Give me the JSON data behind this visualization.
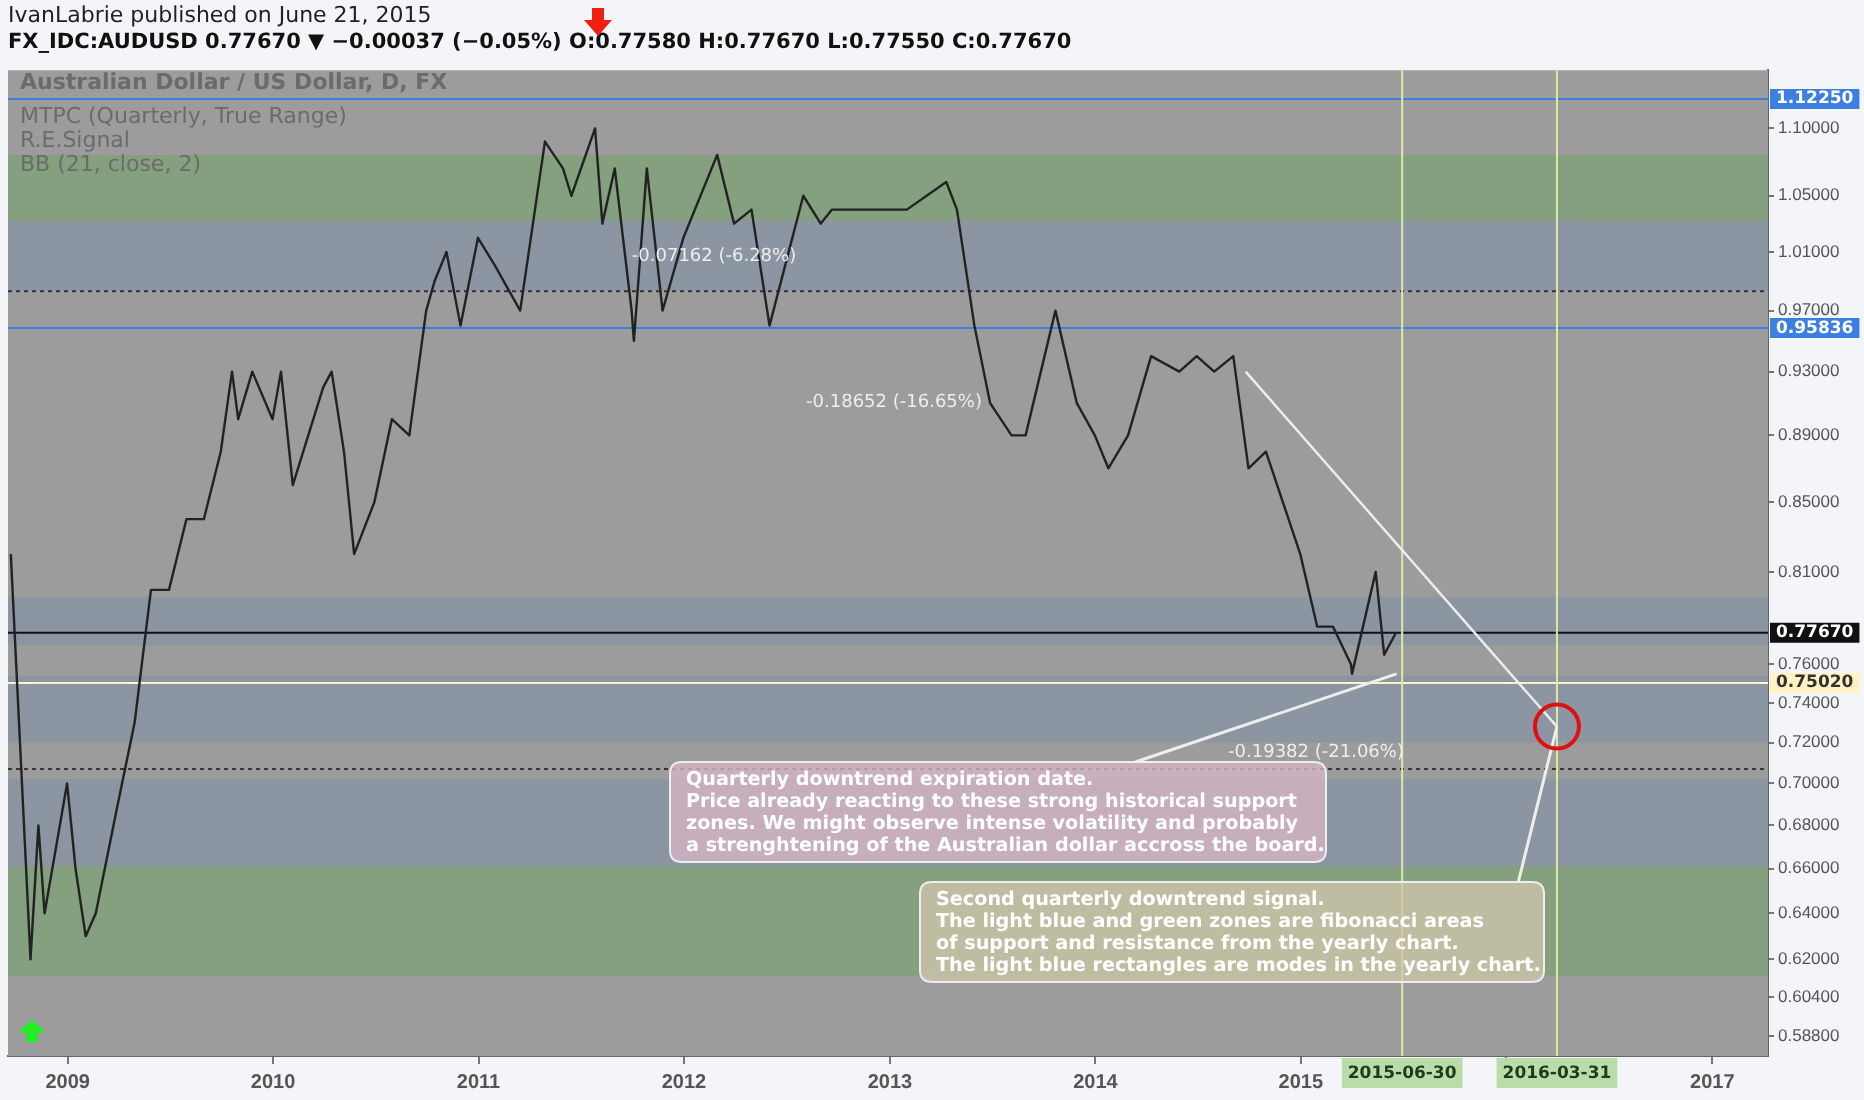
{
  "chart_data": {
    "type": "line",
    "title": "Australian Dollar / US Dollar, D, FX",
    "subtitle": "FX_IDC:AUDUSD 0.77670 ▼ −0.00037 (−0.05%) O:0.77580 H:0.77670 L:0.77550 C:0.77670",
    "series": [
      {
        "color": "#222222",
        "x": [
          "2008-09-22",
          "2008-10-27",
          "2008-11-10",
          "2008-11-21",
          "2008-12-31",
          "2009-01-15",
          "2009-02-02",
          "2009-02-20",
          "2009-03-31",
          "2009-04-30",
          "2009-05-29",
          "2009-06-30",
          "2009-07-31",
          "2009-08-31",
          "2009-09-30",
          "2009-10-20",
          "2009-10-31",
          "2009-11-25",
          "2009-12-31",
          "2010-01-15",
          "2010-02-05",
          "2010-03-31",
          "2010-04-15",
          "2010-05-07",
          "2010-05-25",
          "2010-06-30",
          "2010-07-31",
          "2010-08-31",
          "2010-09-30",
          "2010-10-15",
          "2010-11-05",
          "2010-11-30",
          "2010-12-31",
          "2011-01-31",
          "2011-03-16",
          "2011-04-29",
          "2011-05-31",
          "2011-06-15",
          "2011-07-27",
          "2011-08-09",
          "2011-08-31",
          "2011-09-30",
          "2011-10-04",
          "2011-10-27",
          "2011-11-24",
          "2011-12-31",
          "2012-02-29",
          "2012-03-30",
          "2012-04-30",
          "2012-06-01",
          "2012-07-31",
          "2012-08-31",
          "2012-09-20",
          "2012-10-31",
          "2012-12-31",
          "2013-01-31",
          "2013-04-11",
          "2013-04-30",
          "2013-05-31",
          "2013-06-28",
          "2013-08-05",
          "2013-08-30",
          "2013-10-22",
          "2013-11-29",
          "2013-12-31",
          "2014-01-24",
          "2014-02-28",
          "2014-04-10",
          "2014-05-30",
          "2014-06-30",
          "2014-07-31",
          "2014-09-03",
          "2014-09-30",
          "2014-10-31",
          "2014-11-30",
          "2014-12-31",
          "2015-01-30",
          "2015-02-27",
          "2015-03-31",
          "2015-04-02",
          "2015-05-14",
          "2015-05-29",
          "2015-06-19"
        ],
        "values": [
          0.82,
          0.62,
          0.68,
          0.64,
          0.7,
          0.66,
          0.63,
          0.64,
          0.69,
          0.73,
          0.8,
          0.8,
          0.84,
          0.84,
          0.88,
          0.93,
          0.9,
          0.93,
          0.9,
          0.93,
          0.86,
          0.92,
          0.93,
          0.88,
          0.82,
          0.85,
          0.9,
          0.89,
          0.97,
          0.99,
          1.01,
          0.96,
          1.02,
          1.0,
          0.97,
          1.09,
          1.07,
          1.05,
          1.1,
          1.03,
          1.07,
          0.97,
          0.95,
          1.07,
          0.97,
          1.02,
          1.08,
          1.03,
          1.04,
          0.96,
          1.05,
          1.03,
          1.04,
          1.04,
          1.04,
          1.04,
          1.06,
          1.04,
          0.96,
          0.91,
          0.89,
          0.89,
          0.97,
          0.91,
          0.89,
          0.87,
          0.89,
          0.94,
          0.93,
          0.94,
          0.93,
          0.94,
          0.87,
          0.88,
          0.85,
          0.82,
          0.78,
          0.78,
          0.76,
          0.755,
          0.81,
          0.765,
          0.7767
        ]
      },
      {
        "type": "line",
        "color": "#eeeeee",
        "x": [
          "2014-09-25",
          "2016-03-31"
        ],
        "values": [
          0.93,
          0.728
        ]
      }
    ],
    "log": true,
    "grid": false,
    "legend": false,
    "line_style": "solid",
    "xlim": [
      "2008-09-17",
      "2017-04-10"
    ],
    "xticks": [
      "2009",
      "2010",
      "2011",
      "2012",
      "2013",
      "2014",
      "2015",
      {
        "value": "2016",
        "label": null
      },
      "2017"
    ],
    "ylim": [
      0.582,
      1.145
    ],
    "yticks": [
      {
        "value": 1.1,
        "label": "1.10000"
      },
      {
        "value": 1.05,
        "label": "1.05000"
      },
      {
        "value": 1.01,
        "label": "1.01000"
      },
      {
        "value": 0.97,
        "label": "0.97000"
      },
      {
        "value": 0.93,
        "label": "0.93000"
      },
      {
        "value": 0.89,
        "label": "0.89000"
      },
      {
        "value": 0.85,
        "label": "0.85000"
      },
      {
        "value": 0.81,
        "label": "0.81000"
      },
      {
        "value": 0.76,
        "label": "0.76000"
      },
      {
        "value": 0.74,
        "label": "0.74000"
      },
      {
        "value": 0.72,
        "label": "0.72000"
      },
      {
        "value": 0.7,
        "label": "0.70000"
      },
      {
        "value": 0.68,
        "label": "0.68000"
      },
      {
        "value": 0.66,
        "label": "0.66000"
      },
      {
        "value": 0.64,
        "label": "0.64000"
      },
      {
        "value": 0.62,
        "label": "0.62000"
      },
      {
        "value": 0.604,
        "label": "0.60400"
      },
      {
        "value": 0.588,
        "label": "0.58800"
      }
    ],
    "bands": [
      {
        "axis": "y",
        "from": 1.032,
        "to": 1.08,
        "label": null,
        "color": "#84a07f"
      },
      {
        "axis": "y",
        "from": 0.983,
        "to": 1.032,
        "label": null,
        "color": "#8c95a2"
      },
      {
        "axis": "y",
        "from": 0.77,
        "to": 0.796,
        "label": null,
        "color": "#8c95a2"
      },
      {
        "axis": "y",
        "from": 0.72,
        "to": 0.754,
        "label": null,
        "color": "#8c95a2"
      },
      {
        "axis": "y",
        "from": 0.661,
        "to": 0.702,
        "label": null,
        "color": "#8c95a2"
      },
      {
        "axis": "y",
        "from": 0.613,
        "to": 0.661,
        "label": null,
        "color": "#84a07f"
      }
    ],
    "ref_lines": [
      {
        "axis": "y",
        "value": 1.1225,
        "label": "1.12250",
        "color": "#3d7fe0",
        "line_style": "solid"
      },
      {
        "axis": "y",
        "value": 0.95836,
        "label": "0.95836",
        "color": "#3d7fe0",
        "line_style": "solid"
      },
      {
        "axis": "y",
        "value": 0.7767,
        "label": "0.77670",
        "color": "#111111",
        "line_style": "solid"
      },
      {
        "axis": "y",
        "value": 0.7502,
        "label": "0.75020",
        "color": "#fff3c4",
        "line_style": "solid"
      },
      {
        "axis": "y",
        "value": 0.983,
        "label": null,
        "color": "#333333",
        "line_style": "dotted"
      },
      {
        "axis": "y",
        "value": 0.707,
        "label": null,
        "color": "#333333",
        "line_style": "dotted"
      },
      {
        "axis": "x",
        "value": "2015-06-30",
        "label": "2015-06-30",
        "color": "#dfe8a8",
        "line_style": "solid"
      },
      {
        "axis": "x",
        "value": "2016-03-31",
        "label": "2016-03-31",
        "color": "#dfe8a8",
        "line_style": "solid"
      }
    ],
    "annotations": [
      "IvanLabrie published on June 21, 2015",
      "MTPC (Quarterly, True Range)",
      "R.E.Signal",
      "BB (21, close, 2)",
      "-0.07162 (-6.28%)",
      "-0.18652 (-16.65%)",
      "-0.19382 (-21.06%)",
      {
        "text": "Quarterly downtrend expiration date.\nPrice already reacting to these strong historical support\nzones. We might observe intense volatility and probably\na strenghtening of the Australian dollar accross the board.",
        "x": "2015-06-20",
        "y": 0.755
      },
      {
        "text": "Second quarterly downtrend signal.\nThe light blue and green zones are fibonacci areas\nof support and resistance from the yearly chart.\nThe light blue rectangles are modes in the yearly chart.",
        "x": "2016-03-31",
        "y": 0.728
      }
    ]
  }
}
